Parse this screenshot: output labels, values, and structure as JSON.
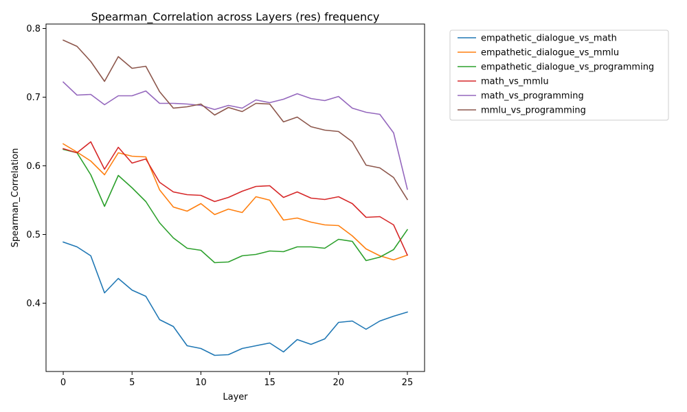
{
  "chart_data": {
    "type": "line",
    "title": "Spearman_Correlation across Layers (res) frequency",
    "xlabel": "Layer",
    "ylabel": "Spearman_Correlation",
    "xlim": [
      -1.25,
      26.25
    ],
    "ylim": [
      0.3005,
      0.8065
    ],
    "xticks": [
      0,
      5,
      10,
      15,
      20,
      25
    ],
    "xtick_labels": [
      "0",
      "5",
      "10",
      "15",
      "20",
      "25"
    ],
    "yticks": [
      0.4,
      0.5,
      0.6,
      0.7,
      0.8
    ],
    "ytick_labels": [
      "0.4",
      "0.5",
      "0.6",
      "0.7",
      "0.8"
    ],
    "grid": false,
    "legend_position": "outside-top-right",
    "x": [
      0,
      1,
      2,
      3,
      4,
      5,
      6,
      7,
      8,
      9,
      10,
      11,
      12,
      13,
      14,
      15,
      16,
      17,
      18,
      19,
      20,
      21,
      22,
      23,
      24,
      25
    ],
    "series": [
      {
        "name": "empathetic_dialogue_vs_math",
        "color": "#1f77b4",
        "values": [
          0.489,
          0.482,
          0.469,
          0.415,
          0.436,
          0.419,
          0.41,
          0.376,
          0.366,
          0.338,
          0.334,
          0.324,
          0.325,
          0.334,
          0.338,
          0.342,
          0.329,
          0.347,
          0.34,
          0.348,
          0.372,
          0.374,
          0.362,
          0.374,
          0.381,
          0.387
        ]
      },
      {
        "name": "empathetic_dialogue_vs_mmlu",
        "color": "#ff7f0e",
        "values": [
          0.632,
          0.62,
          0.607,
          0.587,
          0.619,
          0.614,
          0.613,
          0.565,
          0.54,
          0.534,
          0.545,
          0.529,
          0.537,
          0.532,
          0.555,
          0.55,
          0.521,
          0.524,
          0.518,
          0.514,
          0.513,
          0.498,
          0.479,
          0.469,
          0.463,
          0.47
        ]
      },
      {
        "name": "empathetic_dialogue_vs_programming",
        "color": "#2ca02c",
        "values": [
          0.624,
          0.619,
          0.587,
          0.541,
          0.586,
          0.568,
          0.548,
          0.517,
          0.495,
          0.48,
          0.477,
          0.459,
          0.46,
          0.469,
          0.471,
          0.476,
          0.475,
          0.482,
          0.482,
          0.48,
          0.493,
          0.49,
          0.462,
          0.467,
          0.478,
          0.507
        ]
      },
      {
        "name": "math_vs_mmlu",
        "color": "#d62728",
        "values": [
          0.625,
          0.619,
          0.635,
          0.595,
          0.627,
          0.604,
          0.61,
          0.576,
          0.562,
          0.558,
          0.557,
          0.548,
          0.554,
          0.563,
          0.57,
          0.571,
          0.554,
          0.562,
          0.553,
          0.551,
          0.555,
          0.545,
          0.525,
          0.526,
          0.514,
          0.47
        ]
      },
      {
        "name": "math_vs_programming",
        "color": "#9467bd",
        "values": [
          0.722,
          0.703,
          0.704,
          0.689,
          0.702,
          0.702,
          0.709,
          0.691,
          0.691,
          0.69,
          0.688,
          0.682,
          0.688,
          0.684,
          0.696,
          0.692,
          0.697,
          0.705,
          0.698,
          0.695,
          0.701,
          0.684,
          0.678,
          0.675,
          0.648,
          0.566
        ]
      },
      {
        "name": "mmlu_vs_programming",
        "color": "#8c564b",
        "values": [
          0.783,
          0.774,
          0.752,
          0.723,
          0.759,
          0.742,
          0.745,
          0.708,
          0.684,
          0.686,
          0.69,
          0.674,
          0.685,
          0.679,
          0.691,
          0.69,
          0.664,
          0.671,
          0.657,
          0.652,
          0.65,
          0.635,
          0.601,
          0.597,
          0.583,
          0.551
        ]
      }
    ]
  }
}
